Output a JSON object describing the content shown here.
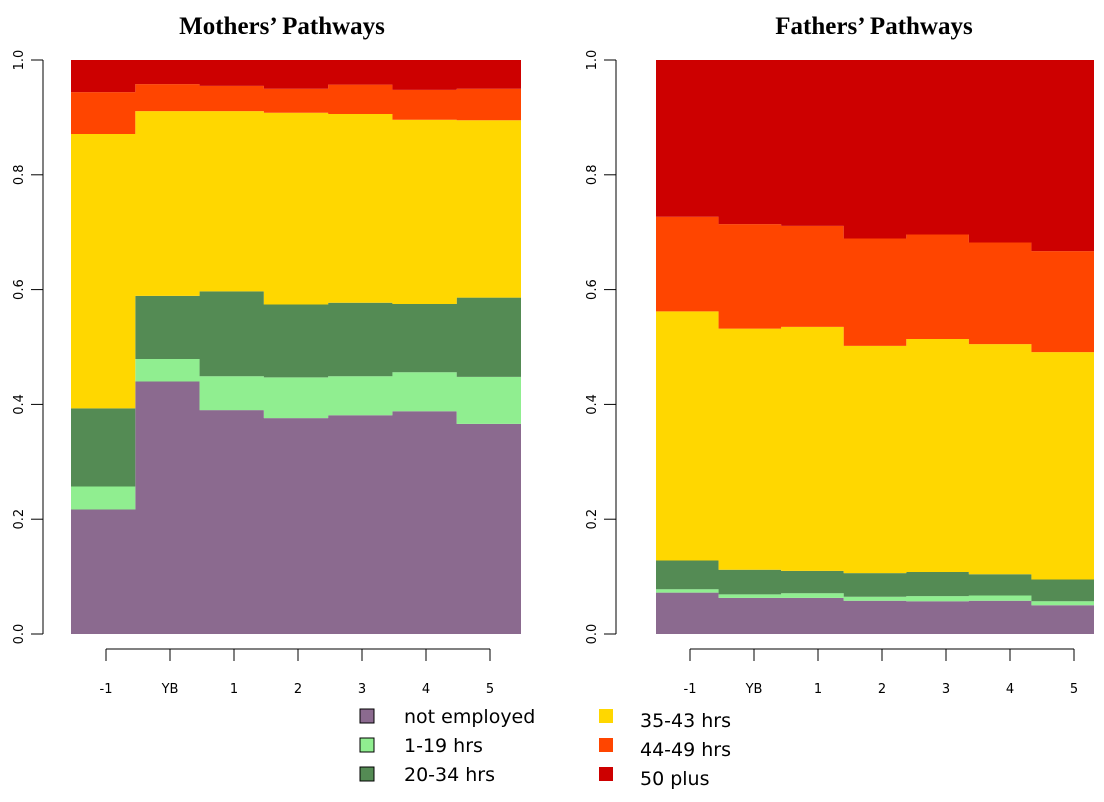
{
  "chart_data": [
    {
      "type": "area",
      "title": "Mothers’ Pathways",
      "categories": [
        "-1",
        "YB",
        "1",
        "2",
        "3",
        "4",
        "5"
      ],
      "ylim": [
        0,
        1
      ],
      "y_ticks": [
        "0.0",
        "0.2",
        "0.4",
        "0.6",
        "0.8",
        "1.0"
      ],
      "stacked": true,
      "series": [
        {
          "name": "not employed",
          "values": [
            0.217,
            0.44,
            0.39,
            0.376,
            0.381,
            0.388,
            0.366
          ]
        },
        {
          "name": "1-19 hrs",
          "values": [
            0.04,
            0.039,
            0.059,
            0.071,
            0.068,
            0.068,
            0.082
          ]
        },
        {
          "name": "20-34 hrs",
          "values": [
            0.136,
            0.11,
            0.148,
            0.127,
            0.128,
            0.119,
            0.138
          ]
        },
        {
          "name": "35-43 hrs",
          "values": [
            0.478,
            0.322,
            0.314,
            0.334,
            0.329,
            0.321,
            0.309
          ]
        },
        {
          "name": "44-49 hrs",
          "values": [
            0.073,
            0.047,
            0.044,
            0.042,
            0.051,
            0.052,
            0.055
          ]
        },
        {
          "name": "50 plus",
          "values": [
            0.056,
            0.042,
            0.045,
            0.05,
            0.043,
            0.052,
            0.05
          ]
        }
      ]
    },
    {
      "type": "area",
      "title": "Fathers’ Pathways",
      "categories": [
        "-1",
        "YB",
        "1",
        "2",
        "3",
        "4",
        "5"
      ],
      "ylim": [
        0,
        1
      ],
      "y_ticks": [
        "0.0",
        "0.2",
        "0.4",
        "0.6",
        "0.8",
        "1.0"
      ],
      "stacked": true,
      "series": [
        {
          "name": "not employed",
          "values": [
            0.072,
            0.063,
            0.063,
            0.058,
            0.057,
            0.058,
            0.05
          ]
        },
        {
          "name": "1-19 hrs",
          "values": [
            0.006,
            0.006,
            0.008,
            0.007,
            0.009,
            0.009,
            0.007
          ]
        },
        {
          "name": "20-34 hrs",
          "values": [
            0.05,
            0.043,
            0.039,
            0.041,
            0.042,
            0.037,
            0.038
          ]
        },
        {
          "name": "35-43 hrs",
          "values": [
            0.434,
            0.42,
            0.425,
            0.396,
            0.406,
            0.401,
            0.396
          ]
        },
        {
          "name": "44-49 hrs",
          "values": [
            0.165,
            0.182,
            0.176,
            0.187,
            0.182,
            0.177,
            0.176
          ]
        },
        {
          "name": "50 plus",
          "values": [
            0.273,
            0.286,
            0.289,
            0.311,
            0.304,
            0.318,
            0.333
          ]
        }
      ]
    }
  ],
  "colors": {
    "not employed": "#8B6A8F",
    "1-19 hrs": "#90EE90",
    "20-34 hrs": "#548B54",
    "35-43 hrs": "#FFD700",
    "44-49 hrs": "#FF4500",
    "50 plus": "#CD0000"
  },
  "legend": {
    "col1": [
      "not employed",
      "1-19 hrs",
      "20-34 hrs"
    ],
    "col2": [
      "35-43 hrs",
      "44-49 hrs",
      "50 plus"
    ]
  }
}
